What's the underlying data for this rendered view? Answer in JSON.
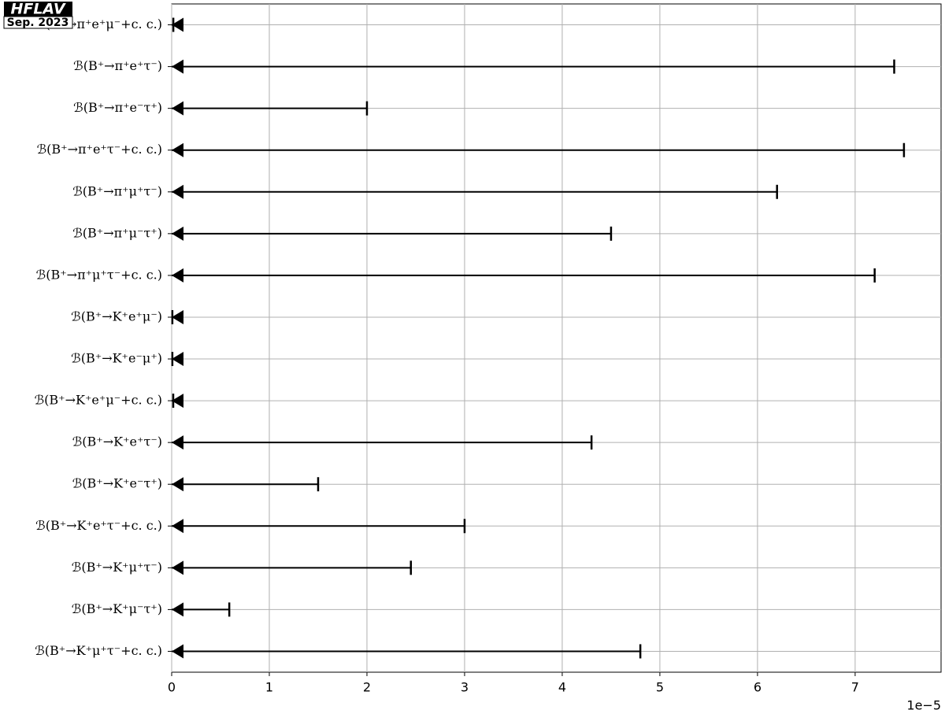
{
  "logo": {
    "title": "HFLAV",
    "date": "Sep. 2023"
  },
  "chart_data": {
    "type": "upper-limit",
    "categories": [
      "ℬ(B⁺→π⁺e⁺μ⁻+c. c.)",
      "ℬ(B⁺→π⁺e⁺τ⁻)",
      "ℬ(B⁺→π⁺e⁻τ⁺)",
      "ℬ(B⁺→π⁺e⁺τ⁻+c. c.)",
      "ℬ(B⁺→π⁺μ⁺τ⁻)",
      "ℬ(B⁺→π⁺μ⁻τ⁺)",
      "ℬ(B⁺→π⁺μ⁺τ⁻+c. c.)",
      "ℬ(B⁺→K⁺e⁺μ⁻)",
      "ℬ(B⁺→K⁺e⁻μ⁺)",
      "ℬ(B⁺→K⁺e⁺μ⁻+c. c.)",
      "ℬ(B⁺→K⁺e⁺τ⁻)",
      "ℬ(B⁺→K⁺e⁻τ⁺)",
      "ℬ(B⁺→K⁺e⁺τ⁻+c. c.)",
      "ℬ(B⁺→K⁺μ⁺τ⁻)",
      "ℬ(B⁺→K⁺μ⁻τ⁺)",
      "ℬ(B⁺→K⁺μ⁺τ⁻+c. c.)"
    ],
    "values": [
      0.017,
      7.4,
      2.0,
      7.5,
      6.2,
      4.5,
      7.2,
      0.007,
      0.007,
      0.016,
      4.3,
      1.5,
      3.0,
      2.45,
      0.59,
      4.8
    ],
    "color": "#000000",
    "xlim": [
      0,
      7.88
    ],
    "xticks": [
      0,
      1,
      2,
      3,
      4,
      5,
      6,
      7
    ],
    "x_offset_label": "1e−5",
    "grid": true
  }
}
